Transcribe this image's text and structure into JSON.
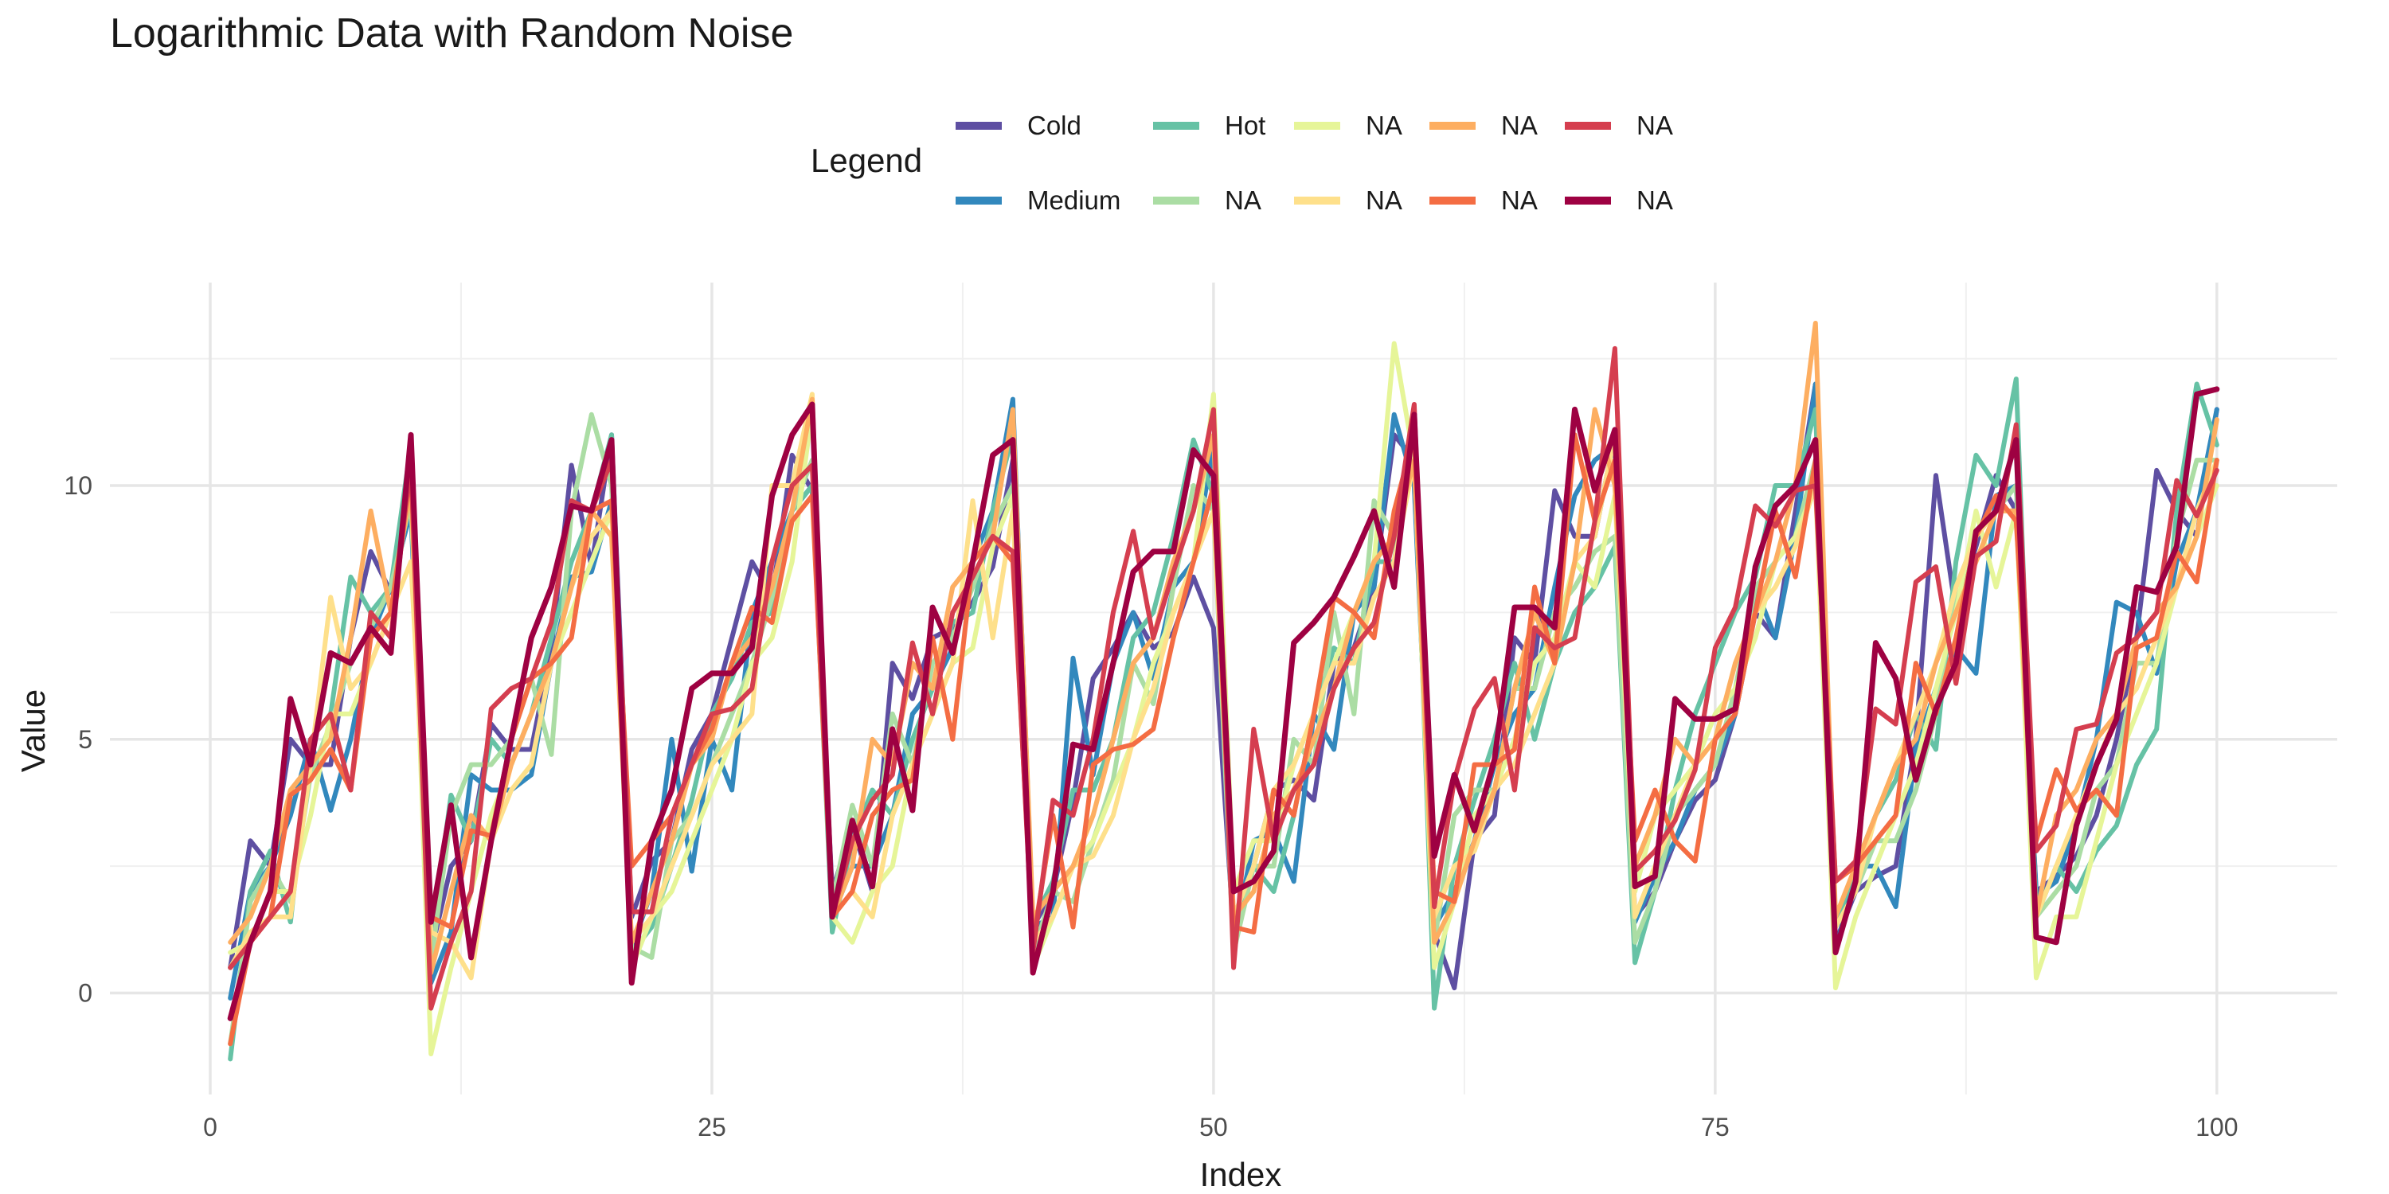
{
  "chart_data": {
    "type": "line",
    "title": "Logarithmic Data with Random Noise",
    "xlabel": "Index",
    "ylabel": "Value",
    "legend_title": "Legend",
    "legend_placement": "top",
    "grid": true,
    "xlim": [
      -5,
      106
    ],
    "ylim": [
      -2,
      14
    ],
    "x_ticks": [
      0,
      25,
      50,
      75,
      100
    ],
    "x_tick_labels": [
      "0",
      "25",
      "50",
      "75",
      "100"
    ],
    "y_ticks": [
      0,
      5,
      10
    ],
    "y_tick_labels": [
      "0",
      "5",
      "10"
    ],
    "x": [
      1,
      2,
      3,
      4,
      5,
      6,
      7,
      8,
      9,
      10,
      11,
      12,
      13,
      14,
      15,
      16,
      17,
      18,
      19,
      20,
      21,
      22,
      23,
      24,
      25,
      26,
      27,
      28,
      29,
      30,
      31,
      32,
      33,
      34,
      35,
      36,
      37,
      38,
      39,
      40,
      41,
      42,
      43,
      44,
      45,
      46,
      47,
      48,
      49,
      50,
      51,
      52,
      53,
      54,
      55,
      56,
      57,
      58,
      59,
      60,
      61,
      62,
      63,
      64,
      65,
      66,
      67,
      68,
      69,
      70,
      71,
      72,
      73,
      74,
      75,
      76,
      77,
      78,
      79,
      80,
      81,
      82,
      83,
      84,
      85,
      86,
      87,
      88,
      89,
      90,
      91,
      92,
      93,
      94,
      95,
      96,
      97,
      98,
      99,
      100
    ],
    "series": [
      {
        "name": "Cold",
        "color": "#5e4fa2",
        "values": [
          0.5,
          3.0,
          2.5,
          5.0,
          4.5,
          4.5,
          7.0,
          8.7,
          7.9,
          10.2,
          0.8,
          2.5,
          3.0,
          5.3,
          4.8,
          4.8,
          6.8,
          10.4,
          8.4,
          11.0,
          1.5,
          2.6,
          3.0,
          4.8,
          5.5,
          7.0,
          8.5,
          7.8,
          10.6,
          9.9,
          2.0,
          3.3,
          2.0,
          6.5,
          5.8,
          7.0,
          7.2,
          7.7,
          8.4,
          10.5,
          1.3,
          2.0,
          3.8,
          6.2,
          6.8,
          7.5,
          6.8,
          7.1,
          8.2,
          7.2,
          1.2,
          2.5,
          4.0,
          4.2,
          3.8,
          6.5,
          6.8,
          8.0,
          11.0,
          10.5,
          1.2,
          0.1,
          3.0,
          3.5,
          7.0,
          6.5,
          9.9,
          9.0,
          9.0,
          11.0,
          1.5,
          2.0,
          3.0,
          3.8,
          4.2,
          5.5,
          7.5,
          7.0,
          9.5,
          12.0,
          1.0,
          2.0,
          2.3,
          2.5,
          5.0,
          10.2,
          7.5,
          8.8,
          10.2,
          9.5,
          2.0,
          2.3,
          2.7,
          3.5,
          5.0,
          7.0,
          10.3,
          9.5,
          9.0,
          11.5
        ]
      },
      {
        "name": "Medium",
        "color": "#3288bd",
        "values": [
          -0.1,
          2.0,
          2.5,
          3.5,
          5.0,
          3.6,
          5.0,
          7.0,
          8.0,
          9.5,
          0.2,
          1.2,
          4.3,
          4.0,
          4.0,
          4.3,
          6.5,
          8.2,
          8.3,
          9.7,
          0.9,
          2.0,
          5.0,
          2.4,
          5.0,
          4.0,
          7.5,
          8.5,
          9.5,
          10.0,
          1.5,
          2.5,
          2.5,
          3.5,
          5.5,
          6.0,
          6.8,
          8.5,
          9.5,
          11.7,
          1.3,
          1.5,
          6.6,
          4.3,
          6.5,
          7.5,
          6.2,
          8.0,
          8.5,
          10.8,
          1.0,
          3.0,
          3.2,
          2.2,
          5.5,
          4.8,
          7.5,
          8.0,
          11.4,
          10.0,
          1.3,
          2.0,
          3.0,
          4.5,
          5.5,
          6.0,
          8.0,
          9.8,
          10.5,
          10.8,
          1.4,
          2.3,
          3.0,
          4.0,
          4.5,
          5.5,
          8.0,
          7.0,
          9.0,
          12.0,
          0.8,
          2.5,
          2.5,
          1.7,
          4.8,
          6.0,
          6.8,
          6.3,
          9.8,
          10.0,
          1.9,
          2.2,
          3.3,
          5.0,
          7.7,
          7.5,
          6.3,
          8.5,
          9.5,
          11.5
        ]
      },
      {
        "name": "Hot",
        "color": "#66c2a5",
        "values": [
          -1.3,
          2.0,
          2.8,
          1.4,
          5.0,
          5.5,
          8.2,
          7.5,
          8.0,
          10.8,
          1.0,
          3.9,
          3.0,
          5.0,
          4.5,
          5.5,
          7.0,
          8.5,
          9.5,
          11.0,
          0.8,
          1.3,
          2.5,
          3.8,
          5.5,
          6.2,
          7.3,
          7.5,
          9.5,
          10.0,
          1.2,
          3.0,
          4.0,
          3.5,
          5.0,
          6.0,
          7.3,
          7.5,
          9.5,
          11.0,
          1.4,
          2.2,
          4.0,
          4.0,
          5.0,
          7.0,
          7.5,
          9.0,
          10.9,
          9.8,
          1.3,
          2.5,
          2.0,
          3.5,
          5.5,
          6.8,
          6.5,
          8.5,
          8.5,
          11.0,
          -0.3,
          2.5,
          3.8,
          5.0,
          6.5,
          5.0,
          6.5,
          7.5,
          8.0,
          8.8,
          0.6,
          2.0,
          4.0,
          5.5,
          6.5,
          7.5,
          8.2,
          10.0,
          10.0,
          11.5,
          1.3,
          2.5,
          3.5,
          4.2,
          5.5,
          4.8,
          8.5,
          10.6,
          10.0,
          12.1,
          1.5,
          2.5,
          2.0,
          2.8,
          3.3,
          4.5,
          5.2,
          9.5,
          12.0,
          10.8
        ]
      },
      {
        "name": "NA",
        "color": "#abdda4",
        "values": [
          -1.0,
          1.8,
          2.5,
          1.8,
          4.3,
          5.3,
          6.5,
          7.2,
          8.0,
          9.7,
          0.6,
          3.5,
          4.5,
          4.5,
          5.0,
          6.2,
          4.7,
          9.5,
          11.4,
          10.0,
          0.9,
          0.7,
          3.0,
          3.5,
          4.5,
          5.5,
          6.5,
          7.8,
          9.5,
          10.5,
          1.8,
          3.7,
          2.5,
          5.5,
          4.5,
          6.5,
          7.0,
          8.0,
          9.2,
          10.0,
          0.8,
          2.0,
          1.8,
          3.0,
          4.2,
          6.5,
          5.7,
          8.0,
          10.0,
          9.5,
          0.8,
          2.5,
          2.5,
          5.0,
          4.5,
          7.5,
          5.5,
          9.7,
          9.0,
          10.5,
          1.0,
          3.5,
          4.0,
          4.0,
          6.0,
          6.0,
          7.5,
          8.0,
          8.7,
          9.0,
          1.0,
          2.0,
          3.5,
          4.0,
          4.5,
          6.0,
          8.0,
          8.5,
          9.0,
          10.5,
          1.3,
          2.0,
          3.0,
          3.0,
          4.0,
          5.5,
          8.0,
          9.0,
          9.5,
          10.0,
          1.5,
          2.0,
          2.5,
          4.0,
          4.5,
          6.5,
          6.5,
          9.0,
          10.5,
          10.5
        ]
      },
      {
        "name": "NA",
        "color": "#e6f598",
        "values": [
          0.8,
          1.0,
          2.0,
          2.0,
          3.5,
          5.5,
          5.5,
          6.5,
          7.5,
          10.0,
          -1.2,
          0.5,
          2.0,
          3.5,
          4.5,
          5.5,
          6.5,
          7.5,
          8.5,
          9.5,
          0.5,
          1.5,
          2.0,
          3.0,
          4.0,
          5.0,
          6.5,
          7.0,
          8.5,
          11.5,
          1.5,
          1.0,
          2.0,
          2.5,
          4.5,
          5.5,
          6.5,
          6.8,
          8.8,
          9.8,
          0.5,
          1.5,
          2.5,
          3.0,
          4.0,
          5.0,
          6.5,
          7.5,
          8.5,
          11.8,
          2.0,
          3.0,
          3.0,
          4.5,
          5.5,
          6.5,
          7.5,
          8.5,
          12.8,
          10.5,
          0.5,
          1.8,
          3.5,
          4.0,
          5.0,
          6.5,
          7.0,
          8.5,
          8.0,
          9.8,
          2.0,
          3.5,
          4.0,
          4.5,
          5.5,
          6.0,
          7.0,
          8.5,
          9.0,
          10.0,
          0.1,
          1.5,
          2.5,
          3.5,
          4.5,
          6.0,
          7.5,
          9.5,
          8.0,
          9.5,
          0.3,
          1.5,
          1.5,
          3.0,
          4.5,
          5.5,
          6.5,
          8.0,
          9.0,
          10.0
        ]
      },
      {
        "name": "NA",
        "color": "#fee08b",
        "values": [
          0.5,
          1.2,
          1.5,
          1.5,
          4.5,
          7.8,
          6.0,
          6.5,
          7.5,
          8.5,
          1.2,
          1.0,
          0.3,
          3.0,
          4.0,
          4.5,
          6.5,
          8.0,
          9.0,
          9.5,
          1.0,
          1.5,
          2.5,
          3.5,
          4.5,
          5.0,
          5.5,
          10.0,
          10.0,
          11.8,
          1.5,
          2.0,
          1.5,
          3.5,
          4.5,
          5.5,
          6.5,
          9.7,
          7.0,
          9.5,
          1.0,
          1.5,
          2.5,
          2.7,
          3.5,
          5.0,
          6.0,
          7.5,
          8.5,
          9.5,
          1.5,
          2.5,
          4.0,
          4.5,
          5.5,
          6.5,
          6.5,
          7.8,
          8.5,
          10.5,
          1.5,
          2.5,
          2.8,
          4.0,
          4.5,
          5.5,
          6.5,
          8.5,
          9.0,
          11.0,
          1.5,
          2.5,
          3.5,
          4.5,
          5.0,
          6.5,
          7.5,
          8.0,
          8.8,
          10.0,
          1.3,
          2.0,
          3.5,
          4.5,
          5.5,
          6.5,
          8.0,
          9.0,
          9.5,
          9.5,
          1.5,
          2.5,
          3.5,
          4.5,
          5.5,
          6.0,
          7.0,
          8.0,
          9.5,
          10.5
        ]
      },
      {
        "name": "NA",
        "color": "#fdae61",
        "values": [
          1.0,
          1.5,
          2.5,
          4.0,
          4.5,
          5.0,
          7.0,
          9.5,
          7.5,
          10.0,
          0.4,
          2.0,
          3.5,
          3.0,
          4.5,
          5.5,
          6.5,
          8.0,
          9.5,
          9.0,
          1.0,
          2.0,
          3.0,
          4.5,
          5.0,
          6.5,
          7.0,
          8.0,
          9.5,
          11.7,
          1.5,
          2.5,
          5.0,
          4.5,
          6.5,
          6.0,
          8.0,
          8.5,
          9.0,
          11.5,
          1.5,
          2.0,
          2.5,
          3.5,
          5.0,
          6.5,
          7.0,
          8.5,
          9.5,
          11.0,
          1.5,
          2.0,
          3.5,
          4.0,
          5.0,
          6.0,
          7.5,
          8.5,
          9.0,
          10.5,
          1.0,
          1.8,
          3.0,
          4.0,
          6.0,
          7.5,
          6.5,
          8.5,
          11.5,
          10.0,
          2.5,
          3.5,
          5.0,
          4.5,
          5.0,
          6.5,
          7.5,
          8.5,
          10.0,
          13.2,
          1.5,
          2.5,
          3.5,
          4.5,
          5.0,
          6.5,
          7.5,
          8.5,
          9.5,
          9.5,
          1.5,
          3.5,
          4.0,
          5.0,
          5.5,
          7.0,
          7.5,
          8.0,
          9.0,
          11.3
        ]
      },
      {
        "name": "NA",
        "color": "#f46d43",
        "values": [
          -1.0,
          1.0,
          1.5,
          3.9,
          4.2,
          4.8,
          4.0,
          7.0,
          7.5,
          10.3,
          1.5,
          1.3,
          3.2,
          3.1,
          5.0,
          6.2,
          6.5,
          7.0,
          9.5,
          9.7,
          2.5,
          3.0,
          3.5,
          4.5,
          5.2,
          6.5,
          7.6,
          7.3,
          9.3,
          9.8,
          1.5,
          2.0,
          3.5,
          4.0,
          4.2,
          7.0,
          5.0,
          8.5,
          9.0,
          8.5,
          1.0,
          3.5,
          1.3,
          4.5,
          4.8,
          4.9,
          5.2,
          7.0,
          8.5,
          10.0,
          1.3,
          1.2,
          4.0,
          3.5,
          5.5,
          7.8,
          7.5,
          7.0,
          9.5,
          11.0,
          2.0,
          1.8,
          4.5,
          4.5,
          4.8,
          8.0,
          6.5,
          11.0,
          9.3,
          10.5,
          3.0,
          4.0,
          3.0,
          2.6,
          5.0,
          5.5,
          7.5,
          9.5,
          8.2,
          10.5,
          2.2,
          2.5,
          3.0,
          3.5,
          6.5,
          5.5,
          7.0,
          9.0,
          9.8,
          9.3,
          3.0,
          4.4,
          3.6,
          4.0,
          3.5,
          6.8,
          7.0,
          8.7,
          8.1,
          10.5
        ]
      },
      {
        "name": "NA",
        "color": "#d53e4f",
        "values": [
          0.5,
          1.0,
          1.5,
          2.0,
          5.0,
          5.5,
          4.0,
          7.5,
          7.0,
          10.5,
          -0.3,
          1.0,
          2.0,
          5.6,
          6.0,
          6.2,
          7.3,
          9.7,
          9.5,
          10.5,
          1.6,
          1.6,
          3.5,
          4.5,
          5.5,
          5.6,
          6.0,
          8.5,
          10.0,
          10.4,
          1.5,
          3.0,
          3.8,
          4.3,
          6.9,
          5.5,
          7.5,
          8.2,
          9.0,
          8.7,
          0.8,
          3.8,
          3.5,
          5.0,
          7.5,
          9.1,
          7.0,
          8.3,
          9.5,
          11.5,
          0.5,
          5.2,
          3.0,
          4.0,
          4.5,
          6.0,
          6.8,
          7.3,
          9.0,
          11.6,
          1.7,
          4.2,
          5.6,
          6.2,
          4.0,
          7.2,
          6.8,
          7.0,
          9.3,
          12.7,
          2.4,
          2.8,
          3.4,
          4.4,
          6.8,
          7.6,
          9.6,
          9.2,
          9.9,
          10.0,
          2.2,
          2.6,
          5.6,
          5.3,
          8.1,
          8.4,
          6.1,
          8.6,
          8.9,
          11.2,
          2.8,
          3.3,
          5.2,
          5.3,
          6.7,
          7.0,
          7.5,
          10.1,
          9.4,
          10.3
        ]
      },
      {
        "name": "NA",
        "color": "#9e0142",
        "values": [
          -0.5,
          1.0,
          2.0,
          5.8,
          4.5,
          6.7,
          6.5,
          7.2,
          6.7,
          11.0,
          1.4,
          3.7,
          0.7,
          3.0,
          5.0,
          7.0,
          8.0,
          9.6,
          9.5,
          10.9,
          0.2,
          3.0,
          4.0,
          6.0,
          6.3,
          6.3,
          6.8,
          9.8,
          11.0,
          11.6,
          1.5,
          3.4,
          2.1,
          5.2,
          3.6,
          7.6,
          6.7,
          8.5,
          10.6,
          10.9,
          0.4,
          2.0,
          4.9,
          4.8,
          6.5,
          8.3,
          8.7,
          8.7,
          10.7,
          10.2,
          2.0,
          2.2,
          2.8,
          6.9,
          7.3,
          7.8,
          8.6,
          9.5,
          8.0,
          11.4,
          2.7,
          4.3,
          3.2,
          4.6,
          7.6,
          7.6,
          7.2,
          11.5,
          9.9,
          11.1,
          2.1,
          2.3,
          5.8,
          5.4,
          5.4,
          5.6,
          8.4,
          9.6,
          10.0,
          10.9,
          0.8,
          2.2,
          6.9,
          6.2,
          4.2,
          5.6,
          6.5,
          9.1,
          9.5,
          10.9,
          1.1,
          1.0,
          3.3,
          4.5,
          5.4,
          8.0,
          7.9,
          8.8,
          11.8,
          11.9
        ]
      }
    ]
  }
}
